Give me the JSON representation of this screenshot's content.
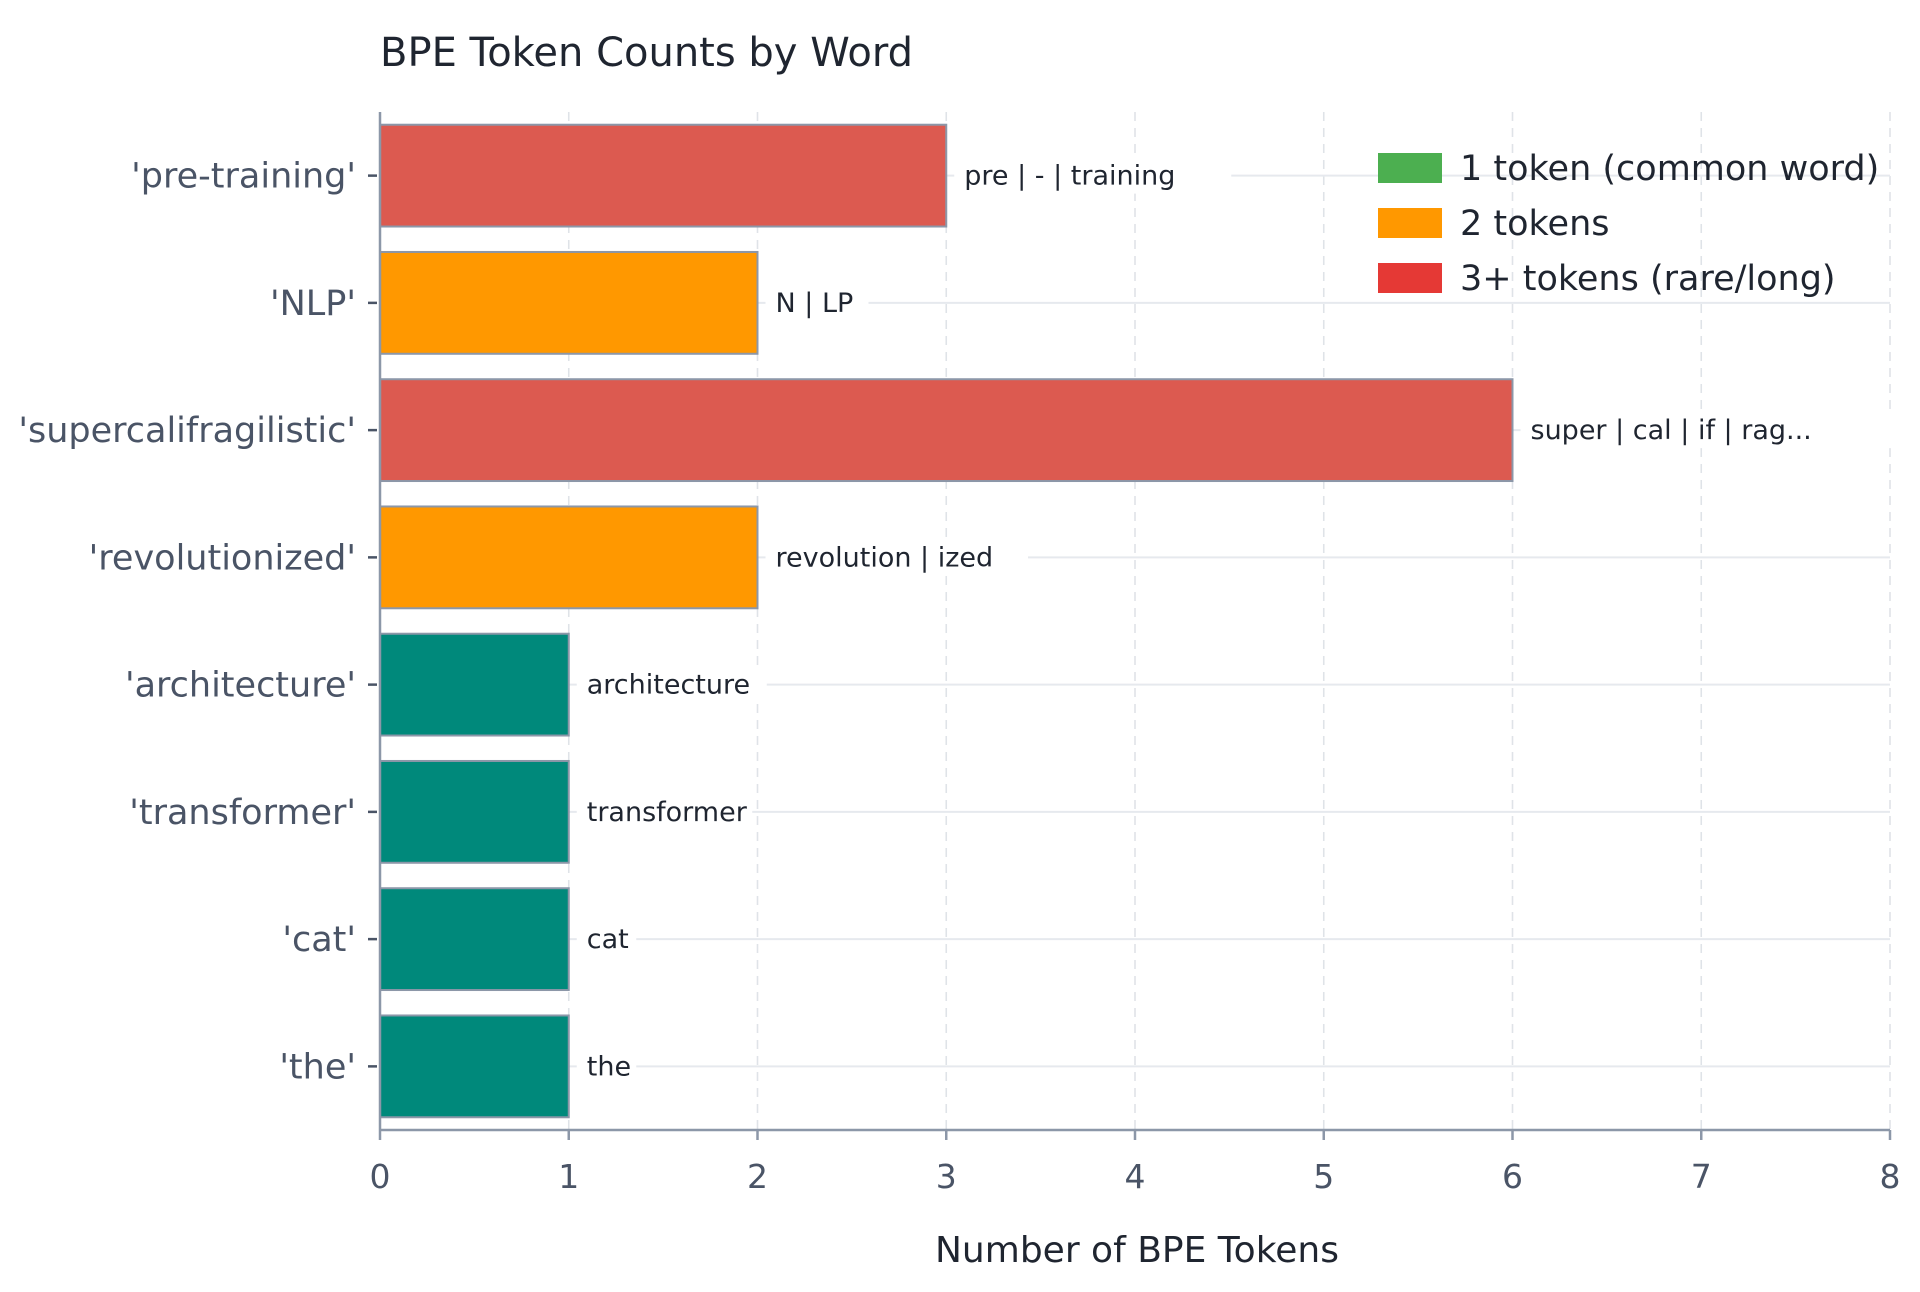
{
  "chart_data": {
    "type": "bar",
    "orientation": "horizontal",
    "title": "BPE Token Counts by Word",
    "xlabel": "Number of BPE Tokens",
    "ylabel": "",
    "xlim": [
      0,
      8
    ],
    "xticks": [
      0,
      1,
      2,
      3,
      4,
      5,
      6,
      7,
      8
    ],
    "grid": true,
    "legend_position": "top-right",
    "categories": [
      "'pre-training'",
      "'NLP'",
      "'supercalifragilistic'",
      "'revolutionized'",
      "'architecture'",
      "'transformer'",
      "'cat'",
      "'the'"
    ],
    "values": [
      3,
      2,
      6,
      2,
      1,
      1,
      1,
      1
    ],
    "bar_labels": [
      "pre | - | training",
      "N | LP",
      "super | cal | if | rag...",
      "revolution | ized",
      "architecture",
      "transformer",
      "cat",
      "the"
    ],
    "bar_colors": [
      "#dc5a50",
      "#ff9800",
      "#dc5a50",
      "#ff9800",
      "#00897b",
      "#00897b",
      "#00897b",
      "#00897b"
    ],
    "legend": [
      {
        "label": "1 token (common word)",
        "color": "#4caf50"
      },
      {
        "label": "2 tokens",
        "color": "#ff9800"
      },
      {
        "label": "3+ tokens (rare/long)",
        "color": "#e53935"
      }
    ]
  }
}
